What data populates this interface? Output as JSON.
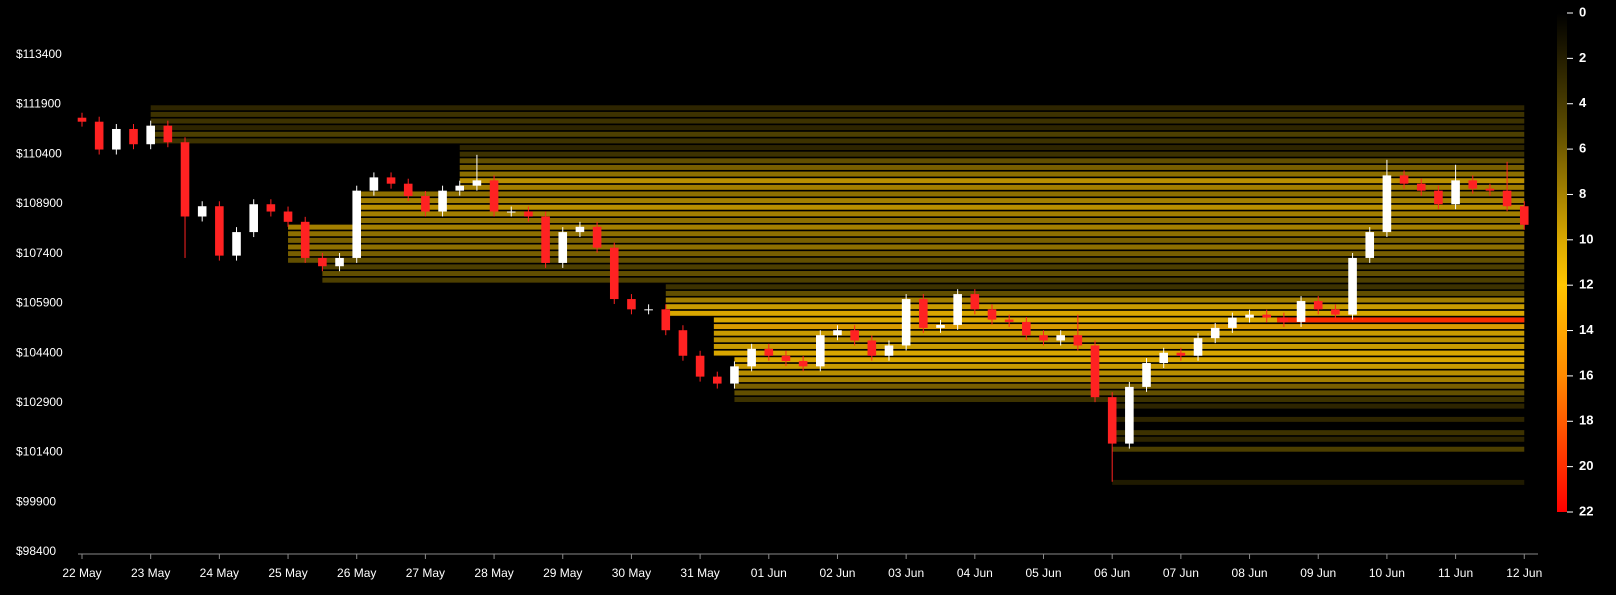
{
  "chart_data": {
    "type": "candlestick",
    "up_color": "#ffffff",
    "down_color": "#ff2222",
    "axis_color": "#888888",
    "x": [
      0,
      0.25,
      0.5,
      0.75,
      1,
      1.25,
      1.5,
      1.75,
      2,
      2.25,
      2.5,
      2.75,
      3,
      3.25,
      3.5,
      3.75,
      4,
      4.25,
      4.5,
      4.75,
      5,
      5.25,
      5.5,
      5.75,
      6,
      6.25,
      6.5,
      6.75,
      7,
      7.25,
      7.5,
      7.75,
      8,
      8.25,
      8.5,
      8.75,
      9,
      9.25,
      9.5,
      9.75,
      10,
      10.25,
      10.5,
      10.75,
      11,
      11.25,
      11.5,
      11.75,
      12,
      12.25,
      12.5,
      12.75,
      13,
      13.25,
      13.5,
      13.75,
      14,
      14.25,
      14.5,
      14.75,
      15,
      15.25,
      15.5,
      15.75,
      16,
      16.25,
      16.5,
      16.75,
      17,
      17.25,
      17.5,
      17.75,
      18,
      18.25,
      18.5,
      18.75,
      19,
      19.25,
      19.5,
      19.75,
      20,
      20.25,
      20.5,
      20.75,
      21
    ],
    "open": [
      111500,
      111380,
      110540,
      111160,
      110700,
      111260,
      110760,
      108520,
      108830,
      107340,
      108050,
      108890,
      108670,
      108360,
      107270,
      107020,
      107270,
      109300,
      109700,
      109510,
      109140,
      108670,
      109300,
      109450,
      109610,
      108670,
      108670,
      108520,
      107120,
      108050,
      108210,
      107580,
      106030,
      105720,
      105720,
      105090,
      104320,
      103690,
      103480,
      104000,
      104530,
      104320,
      104160,
      104000,
      104940,
      105090,
      104780,
      104320,
      104630,
      106030,
      105160,
      105250,
      106180,
      105720,
      105410,
      105340,
      104940,
      104780,
      104940,
      104630,
      103070,
      101670,
      103380,
      104100,
      104410,
      104320,
      104850,
      105160,
      105470,
      105560,
      105470,
      105340,
      105970,
      105720,
      105560,
      107270,
      108050,
      109760,
      109510,
      109300,
      108890,
      109610,
      109360,
      109300,
      108830
    ],
    "high": [
      111650,
      111530,
      111310,
      111310,
      111410,
      111410,
      110910,
      108980,
      108980,
      108200,
      109040,
      109040,
      108820,
      108510,
      107420,
      107420,
      109450,
      109850,
      109850,
      109660,
      109290,
      109450,
      109600,
      110380,
      109760,
      108820,
      108820,
      108670,
      108200,
      108360,
      108360,
      107730,
      106180,
      105870,
      105870,
      105240,
      104470,
      103840,
      104150,
      104680,
      104680,
      104470,
      104310,
      105090,
      105240,
      105240,
      104930,
      104780,
      106180,
      106180,
      105400,
      106330,
      106330,
      105870,
      105560,
      105490,
      105090,
      105090,
      105560,
      104780,
      103220,
      103530,
      104250,
      104560,
      104560,
      105000,
      105310,
      105620,
      105710,
      105710,
      105620,
      106120,
      106120,
      105870,
      107420,
      108200,
      110230,
      109910,
      109660,
      109450,
      110080,
      109760,
      109510,
      110170,
      108980
    ],
    "low": [
      111230,
      110390,
      110390,
      110550,
      110550,
      110610,
      107270,
      108370,
      107190,
      107190,
      107900,
      108520,
      108210,
      107120,
      106870,
      106870,
      107120,
      109150,
      109360,
      108990,
      108520,
      108520,
      109150,
      109300,
      108520,
      108520,
      108370,
      106970,
      106970,
      107900,
      107430,
      105880,
      105570,
      105570,
      104940,
      104170,
      103540,
      103330,
      103330,
      103850,
      104170,
      104010,
      103850,
      103850,
      104790,
      104630,
      104170,
      104170,
      104480,
      105010,
      105010,
      105100,
      105570,
      105260,
      105190,
      104790,
      104630,
      104630,
      104480,
      102920,
      100520,
      101520,
      103230,
      103950,
      104170,
      104170,
      104700,
      105010,
      105320,
      105320,
      105190,
      105190,
      105570,
      105410,
      105410,
      107120,
      107900,
      109360,
      109150,
      108740,
      108740,
      109210,
      109150,
      108680,
      108120
    ],
    "close": [
      111380,
      110540,
      111160,
      110700,
      111260,
      110760,
      108520,
      108830,
      107340,
      108050,
      108890,
      108670,
      108360,
      107270,
      107020,
      107270,
      109300,
      109700,
      109510,
      109140,
      108670,
      109300,
      109450,
      109610,
      108670,
      108670,
      108520,
      107120,
      108050,
      108210,
      107580,
      106030,
      105720,
      105720,
      105090,
      104320,
      103690,
      103480,
      104000,
      104530,
      104320,
      104160,
      104000,
      104940,
      105090,
      104780,
      104320,
      104630,
      106030,
      105160,
      105250,
      106180,
      105720,
      105410,
      105340,
      104940,
      104780,
      104940,
      104630,
      103070,
      101670,
      103380,
      104100,
      104410,
      104320,
      104850,
      105160,
      105470,
      105560,
      105470,
      105340,
      105970,
      105720,
      105560,
      107270,
      108050,
      109760,
      109510,
      109300,
      108890,
      109610,
      109360,
      109300,
      108830,
      108270
    ],
    "xlim": [
      0,
      21.2
    ],
    "xticks": [
      {
        "value": 0,
        "label": "22 May"
      },
      {
        "value": 1,
        "label": "23 May"
      },
      {
        "value": 2,
        "label": "24 May"
      },
      {
        "value": 3,
        "label": "25 May"
      },
      {
        "value": 4,
        "label": "26 May"
      },
      {
        "value": 5,
        "label": "27 May"
      },
      {
        "value": 6,
        "label": "28 May"
      },
      {
        "value": 7,
        "label": "29 May"
      },
      {
        "value": 8,
        "label": "30 May"
      },
      {
        "value": 9,
        "label": "31 May"
      },
      {
        "value": 10,
        "label": "01 Jun"
      },
      {
        "value": 11,
        "label": "02 Jun"
      },
      {
        "value": 12,
        "label": "03 Jun"
      },
      {
        "value": 13,
        "label": "04 Jun"
      },
      {
        "value": 14,
        "label": "05 Jun"
      },
      {
        "value": 15,
        "label": "06 Jun"
      },
      {
        "value": 16,
        "label": "07 Jun"
      },
      {
        "value": 17,
        "label": "08 Jun"
      },
      {
        "value": 18,
        "label": "09 Jun"
      },
      {
        "value": 19,
        "label": "10 Jun"
      },
      {
        "value": 20,
        "label": "11 Jun"
      },
      {
        "value": 21,
        "label": "12 Jun"
      }
    ],
    "ylim": [
      98400,
      114900
    ],
    "yticks": [
      {
        "value": 113400,
        "label": "$113400"
      },
      {
        "value": 111900,
        "label": "$111900"
      },
      {
        "value": 110400,
        "label": "$110400"
      },
      {
        "value": 108900,
        "label": "$108900"
      },
      {
        "value": 107400,
        "label": "$107400"
      },
      {
        "value": 105900,
        "label": "$105900"
      },
      {
        "value": 104400,
        "label": "$104400"
      },
      {
        "value": 102900,
        "label": "$102900"
      },
      {
        "value": 101400,
        "label": "$101400"
      },
      {
        "value": 99900,
        "label": "$99900"
      },
      {
        "value": 98400,
        "label": "$98400"
      }
    ],
    "heatmap": {
      "prices": [
        111800,
        111600,
        111400,
        111200,
        111000,
        110800,
        110600,
        110400,
        110200,
        110000,
        109800,
        109600,
        109400,
        109200,
        109000,
        108800,
        108600,
        108400,
        108200,
        108000,
        107800,
        107600,
        107400,
        107200,
        107000,
        106800,
        106600,
        106400,
        106200,
        106000,
        105800,
        105600,
        105400,
        105200,
        105000,
        104800,
        104600,
        104400,
        104200,
        104000,
        103800,
        103600,
        103400,
        103200,
        103000,
        102800,
        102400,
        102000,
        101800,
        101500,
        100500,
        105400
      ],
      "values": [
        3,
        4,
        4,
        3,
        5,
        4,
        3,
        4,
        6,
        7,
        8,
        10,
        9,
        8,
        9,
        10,
        9,
        8,
        9,
        8,
        7,
        8,
        7,
        6,
        5,
        6,
        5,
        4,
        6,
        9,
        11,
        12,
        12,
        13,
        11,
        10,
        11,
        12,
        12,
        11,
        10,
        9,
        7,
        6,
        4,
        3,
        3,
        4,
        3,
        5,
        2,
        21
      ],
      "starts": [
        1,
        1,
        1,
        1,
        1,
        1,
        5.5,
        5.5,
        5.5,
        5.5,
        5.5,
        5.5,
        5.5,
        4,
        4,
        4,
        4,
        4,
        3,
        3,
        3,
        3,
        3,
        3,
        3.5,
        3.5,
        3.5,
        8.5,
        8.5,
        8.5,
        8.5,
        8.5,
        9.2,
        9.2,
        9.2,
        9.2,
        9.2,
        9.2,
        9.5,
        9.5,
        9.5,
        9.5,
        9.5,
        9.5,
        9.5,
        15,
        15,
        15,
        15,
        15,
        15,
        17.4
      ]
    },
    "colorbar": {
      "lim": [
        0,
        22
      ],
      "ticks": [
        0,
        2,
        4,
        6,
        8,
        10,
        12,
        14,
        16,
        18,
        20,
        22
      ],
      "stops": [
        {
          "value": 0,
          "color": "#000000"
        },
        {
          "value": 5,
          "color": "#5a4a00"
        },
        {
          "value": 10,
          "color": "#d9a800"
        },
        {
          "value": 12,
          "color": "#ffc400"
        },
        {
          "value": 16,
          "color": "#ff8a00"
        },
        {
          "value": 22,
          "color": "#ff0000"
        }
      ]
    }
  }
}
